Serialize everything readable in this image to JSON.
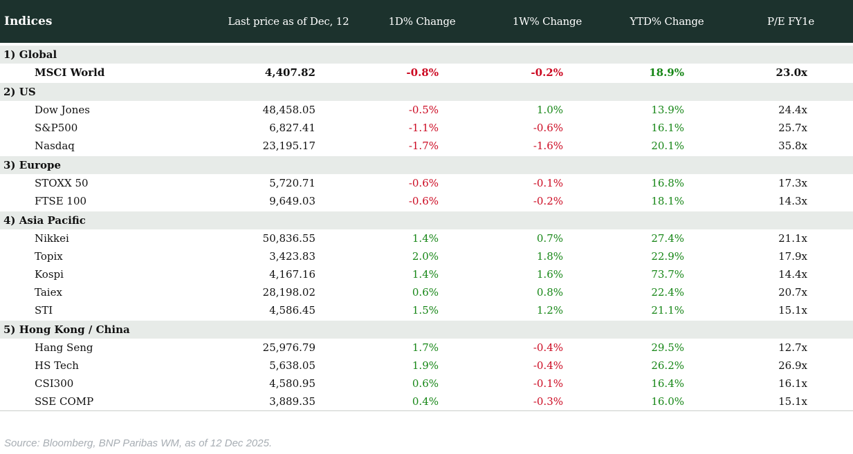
{
  "header": {
    "columns": [
      "Indices",
      "Last price as of Dec, 12",
      "1D% Change",
      "1W% Change",
      "YTD% Change",
      "P/E FY1e"
    ]
  },
  "table": {
    "sections": [
      {
        "label": "1) Global",
        "rows": [
          {
            "name": "MSCI World",
            "last_price": "4,407.82",
            "d1": "-0.8%",
            "w1": "-0.2%",
            "ytd": "18.9%",
            "pe": "23.0x",
            "emphasis": true
          }
        ]
      },
      {
        "label": "2) US",
        "rows": [
          {
            "name": "Dow Jones",
            "last_price": "48,458.05",
            "d1": "-0.5%",
            "w1": "1.0%",
            "ytd": "13.9%",
            "pe": "24.4x"
          },
          {
            "name": "S&P500",
            "last_price": "6,827.41",
            "d1": "-1.1%",
            "w1": "-0.6%",
            "ytd": "16.1%",
            "pe": "25.7x"
          },
          {
            "name": "Nasdaq",
            "last_price": "23,195.17",
            "d1": "-1.7%",
            "w1": "-1.6%",
            "ytd": "20.1%",
            "pe": "35.8x"
          }
        ]
      },
      {
        "label": "3) Europe",
        "rows": [
          {
            "name": "STOXX 50",
            "last_price": "5,720.71",
            "d1": "-0.6%",
            "w1": "-0.1%",
            "ytd": "16.8%",
            "pe": "17.3x"
          },
          {
            "name": "FTSE 100",
            "last_price": "9,649.03",
            "d1": "-0.6%",
            "w1": "-0.2%",
            "ytd": "18.1%",
            "pe": "14.3x"
          }
        ]
      },
      {
        "label": "4) Asia Pacific",
        "rows": [
          {
            "name": "Nikkei",
            "last_price": "50,836.55",
            "d1": "1.4%",
            "w1": "0.7%",
            "ytd": "27.4%",
            "pe": "21.1x"
          },
          {
            "name": "Topix",
            "last_price": "3,423.83",
            "d1": "2.0%",
            "w1": "1.8%",
            "ytd": "22.9%",
            "pe": "17.9x"
          },
          {
            "name": "Kospi",
            "last_price": "4,167.16",
            "d1": "1.4%",
            "w1": "1.6%",
            "ytd": "73.7%",
            "pe": "14.4x"
          },
          {
            "name": "Taiex",
            "last_price": "28,198.02",
            "d1": "0.6%",
            "w1": "0.8%",
            "ytd": "22.4%",
            "pe": "20.7x"
          },
          {
            "name": "STI",
            "last_price": "4,586.45",
            "d1": "1.5%",
            "w1": "1.2%",
            "ytd": "21.1%",
            "pe": "15.1x"
          }
        ]
      },
      {
        "label": "5) Hong Kong / China",
        "rows": [
          {
            "name": "Hang Seng",
            "last_price": "25,976.79",
            "d1": "1.7%",
            "w1": "-0.4%",
            "ytd": "29.5%",
            "pe": "12.7x"
          },
          {
            "name": "HS Tech",
            "last_price": "5,638.05",
            "d1": "1.9%",
            "w1": "-0.4%",
            "ytd": "26.2%",
            "pe": "26.9x"
          },
          {
            "name": "CSI300",
            "last_price": "4,580.95",
            "d1": "0.6%",
            "w1": "-0.1%",
            "ytd": "16.4%",
            "pe": "16.1x"
          },
          {
            "name": "SSE COMP",
            "last_price": "3,889.35",
            "d1": "0.4%",
            "w1": "-0.3%",
            "ytd": "16.0%",
            "pe": "15.1x"
          }
        ]
      }
    ]
  },
  "footer": {
    "source": "Source: Bloomberg, BNP Paribas WM, as of 12 Dec 2025."
  },
  "colors": {
    "header_bg": "#1c322d",
    "section_bg": "#e7ebe8",
    "negative": "#cc0a22",
    "positive": "#168616",
    "source_text": "#a7adb3"
  },
  "chart_data": {
    "type": "table",
    "title": "Indices",
    "columns": [
      "Indices",
      "Last price as of Dec, 12",
      "1D% Change",
      "1W% Change",
      "YTD% Change",
      "P/E FY1e"
    ],
    "rows": [
      [
        "1) Global",
        "",
        "",
        "",
        "",
        ""
      ],
      [
        "MSCI World",
        "4,407.82",
        "-0.8%",
        "-0.2%",
        "18.9%",
        "23.0x"
      ],
      [
        "2) US",
        "",
        "",
        "",
        "",
        ""
      ],
      [
        "Dow Jones",
        "48,458.05",
        "-0.5%",
        "1.0%",
        "13.9%",
        "24.4x"
      ],
      [
        "S&P500",
        "6,827.41",
        "-1.1%",
        "-0.6%",
        "16.1%",
        "25.7x"
      ],
      [
        "Nasdaq",
        "23,195.17",
        "-1.7%",
        "-1.6%",
        "20.1%",
        "35.8x"
      ],
      [
        "3) Europe",
        "",
        "",
        "",
        "",
        ""
      ],
      [
        "STOXX 50",
        "5,720.71",
        "-0.6%",
        "-0.1%",
        "16.8%",
        "17.3x"
      ],
      [
        "FTSE 100",
        "9,649.03",
        "-0.6%",
        "-0.2%",
        "18.1%",
        "14.3x"
      ],
      [
        "4) Asia Pacific",
        "",
        "",
        "",
        "",
        ""
      ],
      [
        "Nikkei",
        "50,836.55",
        "1.4%",
        "0.7%",
        "27.4%",
        "21.1x"
      ],
      [
        "Topix",
        "3,423.83",
        "2.0%",
        "1.8%",
        "22.9%",
        "17.9x"
      ],
      [
        "Kospi",
        "4,167.16",
        "1.4%",
        "1.6%",
        "73.7%",
        "14.4x"
      ],
      [
        "Taiex",
        "28,198.02",
        "0.6%",
        "0.8%",
        "22.4%",
        "20.7x"
      ],
      [
        "STI",
        "4,586.45",
        "1.5%",
        "1.2%",
        "21.1%",
        "15.1x"
      ],
      [
        "5) Hong Kong / China",
        "",
        "",
        "",
        "",
        ""
      ],
      [
        "Hang Seng",
        "25,976.79",
        "1.7%",
        "-0.4%",
        "29.5%",
        "12.7x"
      ],
      [
        "HS Tech",
        "5,638.05",
        "1.9%",
        "-0.4%",
        "26.2%",
        "26.9x"
      ],
      [
        "CSI300",
        "4,580.95",
        "0.6%",
        "-0.1%",
        "16.4%",
        "16.1x"
      ],
      [
        "SSE COMP",
        "3,889.35",
        "0.4%",
        "-0.3%",
        "16.0%",
        "15.1x"
      ]
    ],
    "notes": "Negative change values shown in red, positive in green."
  }
}
